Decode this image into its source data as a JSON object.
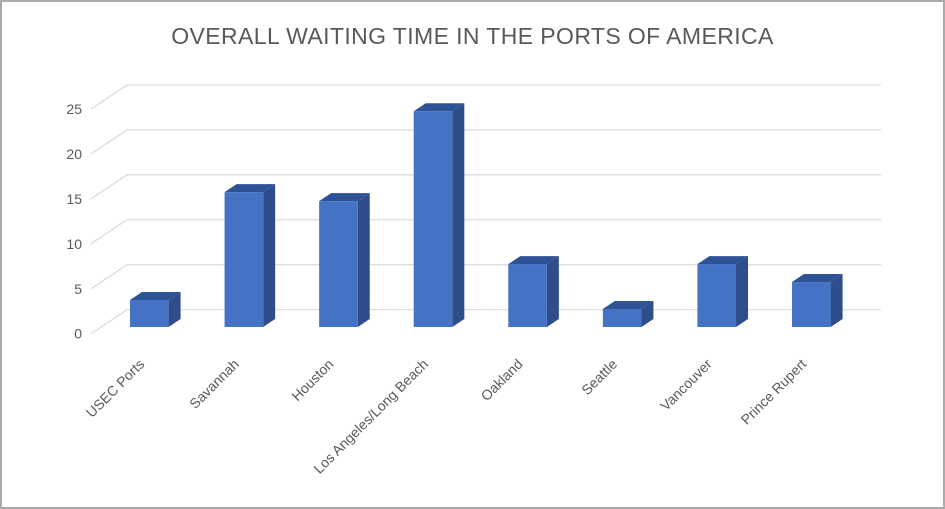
{
  "chart_data": {
    "type": "bar",
    "style": "3d-clustered-column",
    "title": "OVERALL WAITING TIME IN THE PORTS OF AMERICA",
    "categories": [
      "USEC Ports",
      "Savannah",
      "Houston",
      "Los Angeles/Long Beach",
      "Oakland",
      "Seattle",
      "Vancouver",
      "Prince Rupert"
    ],
    "values": [
      3,
      15,
      14,
      24,
      7,
      2,
      7,
      5
    ],
    "xlabel": "",
    "ylabel": "",
    "ylim": [
      0,
      25
    ],
    "yticks": [
      0,
      5,
      10,
      15,
      20,
      25
    ],
    "grid": true,
    "legend": false,
    "x_label_rotation_deg": 45,
    "colors": {
      "bar_front": "#4472C4",
      "bar_side": "#2E4D8A",
      "bar_top": "#2D5396",
      "gridline": "#D9D9D9",
      "text": "#595959",
      "title_text": "#595959",
      "background": "#FFFFFF",
      "border": "#ABABAB"
    }
  }
}
